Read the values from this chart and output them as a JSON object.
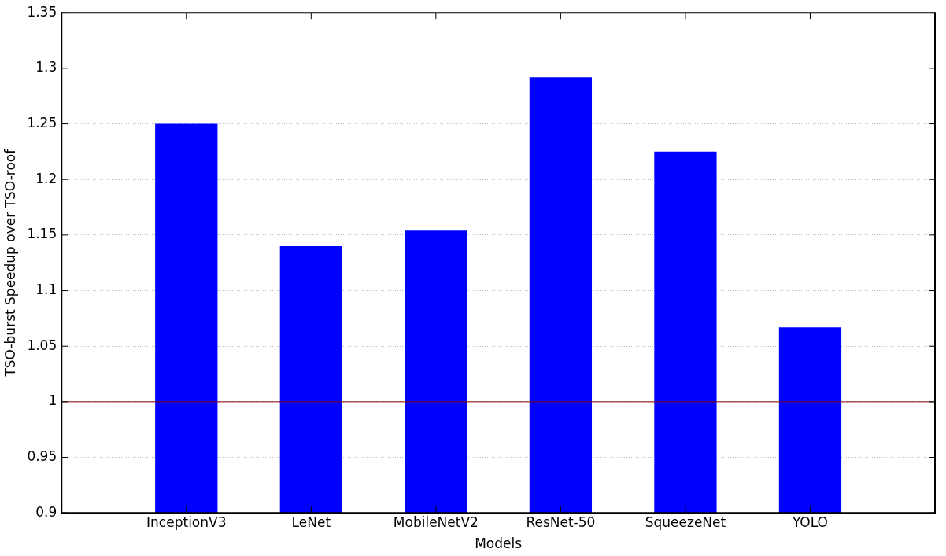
{
  "chart_data": {
    "type": "bar",
    "xlabel": "Models",
    "ylabel": "TSO-burst Speedup over TSO-roof",
    "categories": [
      null,
      "InceptionV3",
      "LeNet",
      "MobileNetV2",
      "ResNet-50",
      "SqueezeNet",
      "YOLO",
      null
    ],
    "values": [
      null,
      1.25,
      1.14,
      1.154,
      1.292,
      1.225,
      1.067,
      null
    ],
    "color": "#0000ff",
    "ylim": [
      0.9,
      1.35
    ],
    "yticks": [
      0.9,
      0.95,
      1,
      1.05,
      1.1,
      1.15,
      1.2,
      1.25,
      1.3,
      1.35
    ],
    "ref_lines": [
      {
        "axis": "y",
        "value": 1,
        "color": "#800000"
      }
    ],
    "grid": "y",
    "legend": false
  }
}
